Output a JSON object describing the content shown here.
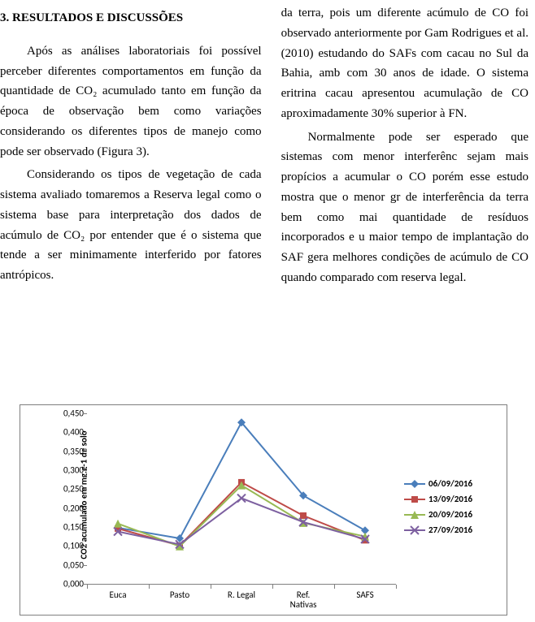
{
  "section_number_title": "3.  RESULTADOS E DISCUSSÕES",
  "left_paragraphs": [
    "Após as análises laboratoriais foi possível perceber diferentes comportamentos em função da quantidade de CO₂ acumulado tanto em função da época de observação bem como variações considerando os diferentes tipos de manejo como pode ser observado (Figura 3).",
    "Considerando os tipos de vegetação de cada sistema avaliado tomaremos a Reserva legal como o sistema base para interpretação dos dados de acúmulo de CO₂ por entender que é o sistema que tende a ser minimamente interferido por fatores antrópicos."
  ],
  "right_paragraphs": [
    "da terra, pois um diferente acúmulo de CO foi observado anteriormente por Gam Rodrigues et al. (2010) estudando do SAFs com cacau no Sul da Bahia, amb com 30 anos de idade. O sistema eritrina cacau apresentou acumulação de CO aproximadamente 30% superior à FN.",
    "Normalmente pode ser esperado que sistemas com menor interferênc sejam mais propícios a acumular o CO porém esse estudo mostra que o menor gr de interferência da terra bem como mai quantidade de resíduos incorporados e u maior tempo de implantação do SAF gera melhores condições de acúmulo de CO quando comparado com reserva legal."
  ],
  "chart": {
    "type": "line",
    "y_axis_title": "CO2 acumulado em mg.g-1 de solo",
    "categories": [
      "Euca",
      "Pasto",
      "R. Legal",
      "Ref. Nativas",
      "SAFS"
    ],
    "ylim": [
      0,
      0.45
    ],
    "ytick_step": 0.05,
    "ytick_labels": [
      "0,000",
      "0,050",
      "0,100",
      "0,150",
      "0,200",
      "0,250",
      "0,300",
      "0,350",
      "0,400",
      "0,450"
    ],
    "series": [
      {
        "label": "06/09/2016",
        "color": "#4a7ebb",
        "marker": "diamond",
        "values": [
          0.148,
          0.12,
          0.426,
          0.233,
          0.141
        ]
      },
      {
        "label": "13/09/2016",
        "color": "#be4b48",
        "marker": "square",
        "values": [
          0.146,
          0.101,
          0.268,
          0.18,
          0.115
        ]
      },
      {
        "label": "20/09/2016",
        "color": "#98b954",
        "marker": "triangle",
        "values": [
          0.159,
          0.099,
          0.26,
          0.161,
          0.125
        ]
      },
      {
        "label": "27/09/2016",
        "color": "#7d60a0",
        "marker": "x",
        "values": [
          0.138,
          0.104,
          0.226,
          0.163,
          0.118
        ]
      }
    ],
    "axis_color": "#808080",
    "background": "#ffffff"
  }
}
